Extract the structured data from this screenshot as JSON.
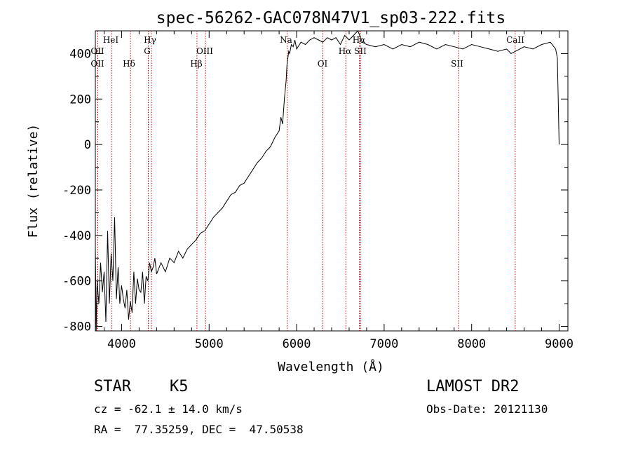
{
  "chart_data": {
    "type": "line",
    "title": "spec-56262-GAC078N47V1_sp03-222.fits",
    "xlabel": "Wavelength (Å)",
    "ylabel": "Flux (relative)",
    "xlim": [
      3700,
      9100
    ],
    "ylim": [
      -820,
      500
    ],
    "xticks": [
      4000,
      5000,
      6000,
      7000,
      8000,
      9000
    ],
    "yticks": [
      -800,
      -600,
      -400,
      -200,
      0,
      200,
      400
    ],
    "grid": false,
    "line_color": "#000000",
    "marker_color": "#cc0000",
    "series": [
      {
        "x": [
          3700,
          3710,
          3720,
          3740,
          3760,
          3780,
          3800,
          3820,
          3840,
          3860,
          3880,
          3900,
          3920,
          3940,
          3960,
          3980,
          4000,
          4020,
          4040,
          4060,
          4080,
          4100,
          4120,
          4140,
          4160,
          4180,
          4200,
          4220,
          4240,
          4260,
          4280,
          4300,
          4320,
          4340,
          4360,
          4380,
          4400,
          4450,
          4500,
          4550,
          4600,
          4650,
          4700,
          4750,
          4800,
          4850,
          4900,
          4950,
          5000,
          5050,
          5100,
          5150,
          5200,
          5250,
          5300,
          5350,
          5400,
          5450,
          5500,
          5550,
          5600,
          5650,
          5700,
          5750,
          5800,
          5820,
          5840,
          5860,
          5880,
          5890,
          5900,
          5910,
          5920,
          5940,
          5960,
          5980,
          6000,
          6050,
          6100,
          6150,
          6200,
          6250,
          6300,
          6350,
          6400,
          6450,
          6500,
          6550,
          6600,
          6650,
          6700,
          6750,
          6800,
          6900,
          7000,
          7100,
          7200,
          7300,
          7400,
          7500,
          7600,
          7700,
          7800,
          7900,
          8000,
          8100,
          8200,
          8300,
          8400,
          8450,
          8500,
          8550,
          8600,
          8700,
          8800,
          8900,
          8960,
          8980,
          9000
        ],
        "y": [
          -450,
          -820,
          -600,
          -700,
          -520,
          -650,
          -560,
          -780,
          -380,
          -700,
          -480,
          -600,
          -320,
          -680,
          -540,
          -700,
          -620,
          -680,
          -720,
          -640,
          -770,
          -690,
          -740,
          -560,
          -700,
          -590,
          -640,
          -650,
          -560,
          -700,
          -580,
          -600,
          -520,
          -560,
          -540,
          -500,
          -570,
          -520,
          -560,
          -500,
          -520,
          -470,
          -500,
          -460,
          -440,
          -420,
          -390,
          -380,
          -350,
          -320,
          -300,
          -280,
          -250,
          -220,
          -210,
          -180,
          -170,
          -140,
          -110,
          -80,
          -60,
          -30,
          -10,
          30,
          60,
          120,
          90,
          200,
          280,
          350,
          380,
          410,
          400,
          440,
          430,
          460,
          420,
          450,
          440,
          460,
          470,
          460,
          450,
          470,
          460,
          470,
          440,
          480,
          460,
          480,
          500,
          450,
          440,
          430,
          440,
          420,
          440,
          430,
          450,
          440,
          420,
          440,
          430,
          420,
          440,
          430,
          420,
          410,
          420,
          400,
          410,
          420,
          430,
          420,
          440,
          450,
          420,
          380,
          0
        ]
      }
    ],
    "annotations": [
      "HeI",
      "OII",
      "OII",
      "Hδ",
      "Hγ",
      "G",
      "Hβ",
      "OIII",
      "Na",
      "OI",
      "Hα",
      "SII",
      "Hα",
      "SII",
      "CaII"
    ],
    "line_markers": [
      {
        "wavelength": 3889,
        "label": "HeI"
      },
      {
        "wavelength": 3727,
        "label": "OII"
      },
      {
        "wavelength": 3727,
        "label": "OII"
      },
      {
        "wavelength": 4102,
        "label": "Hδ"
      },
      {
        "wavelength": 4341,
        "label": "Hγ"
      },
      {
        "wavelength": 4305,
        "label": "G"
      },
      {
        "wavelength": 4861,
        "label": "Hβ"
      },
      {
        "wavelength": 4959,
        "label": "OIII"
      },
      {
        "wavelength": 5893,
        "label": "Na"
      },
      {
        "wavelength": 6300,
        "label": "OI"
      },
      {
        "wavelength": 6563,
        "label": "Hα"
      },
      {
        "wavelength": 6717,
        "label": "SII"
      },
      {
        "wavelength": 6731,
        "label": "Hα"
      },
      {
        "wavelength": 7850,
        "label": "SII"
      },
      {
        "wavelength": 8498,
        "label": "CaII"
      }
    ]
  },
  "info": {
    "object_class": "STAR",
    "subclass": "K5",
    "survey": "LAMOST DR2",
    "redshift": "cz = -62.1 ± 14.0 km/s",
    "obs_date": "Obs-Date: 20121130",
    "coords": "RA =  77.35259, DEC =  47.50538"
  }
}
